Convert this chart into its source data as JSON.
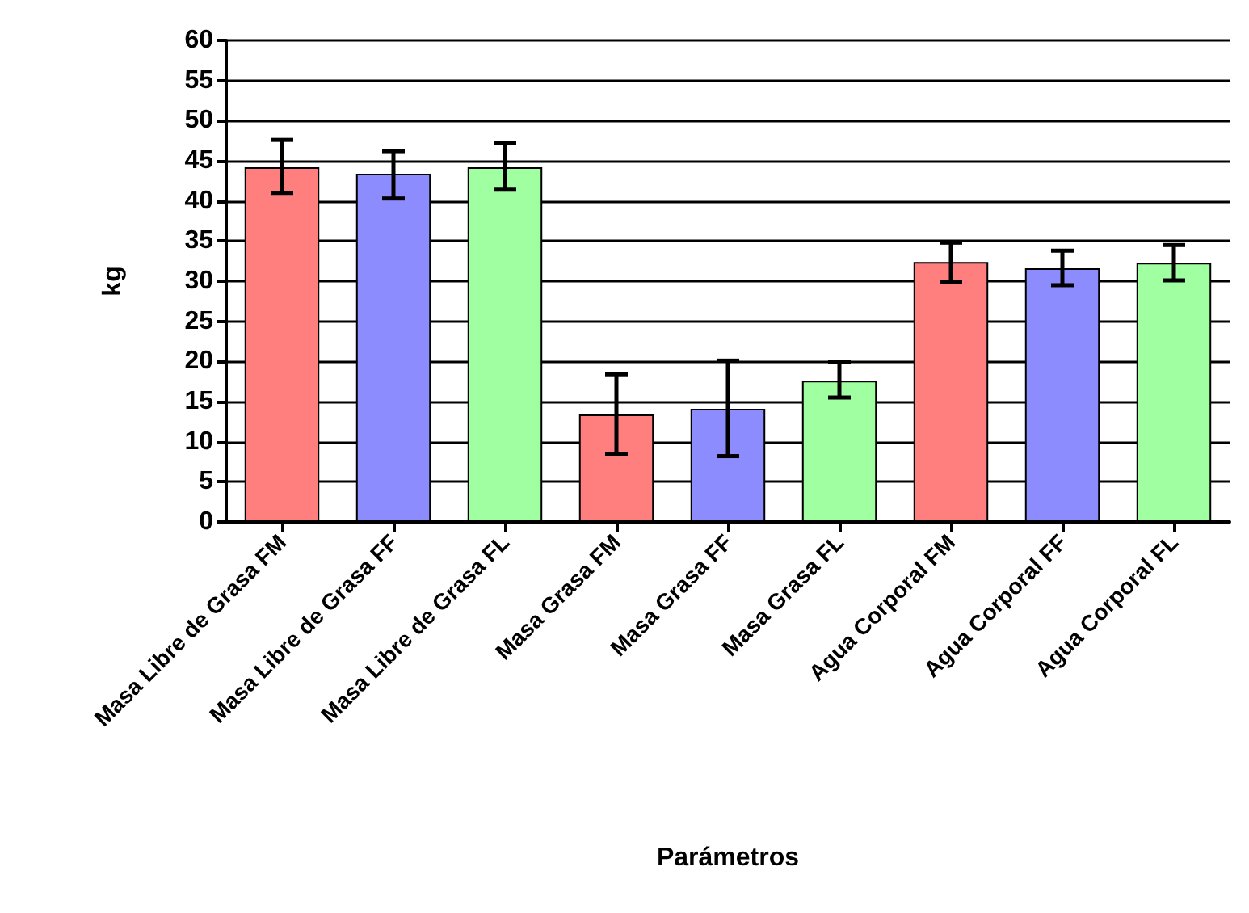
{
  "chart_data": {
    "type": "bar",
    "xlabel": "Parámetros",
    "ylabel": "kg",
    "categories": [
      "Masa Libre de Grasa FM",
      "Masa Libre de Grasa FF",
      "Masa Libre de Grasa FL",
      "Masa Grasa FM",
      "Masa Grasa FF",
      "Masa Grasa FL",
      "Agua Corporal FM",
      "Agua Corporal FF",
      "Agua Corporal FL"
    ],
    "values": [
      44.2,
      43.4,
      44.2,
      13.4,
      14.1,
      17.6,
      32.4,
      31.6,
      32.3
    ],
    "errors": [
      [
        41.0,
        47.6
      ],
      [
        40.3,
        46.2
      ],
      [
        41.4,
        47.2
      ],
      [
        8.5,
        18.4
      ],
      [
        8.2,
        20.1
      ],
      [
        15.5,
        19.9
      ],
      [
        29.9,
        34.8
      ],
      [
        29.5,
        33.8
      ],
      [
        30.1,
        34.5
      ]
    ],
    "colors": [
      "#ff7f7f",
      "#8c8cff",
      "#a0ffa0",
      "#ff7f7f",
      "#8c8cff",
      "#a0ffa0",
      "#ff7f7f",
      "#8c8cff",
      "#a0ffa0"
    ],
    "ylim": [
      0,
      60
    ],
    "yticks": [
      0,
      5,
      10,
      15,
      20,
      25,
      30,
      35,
      40,
      45,
      50,
      55,
      60
    ],
    "grid": "y"
  }
}
